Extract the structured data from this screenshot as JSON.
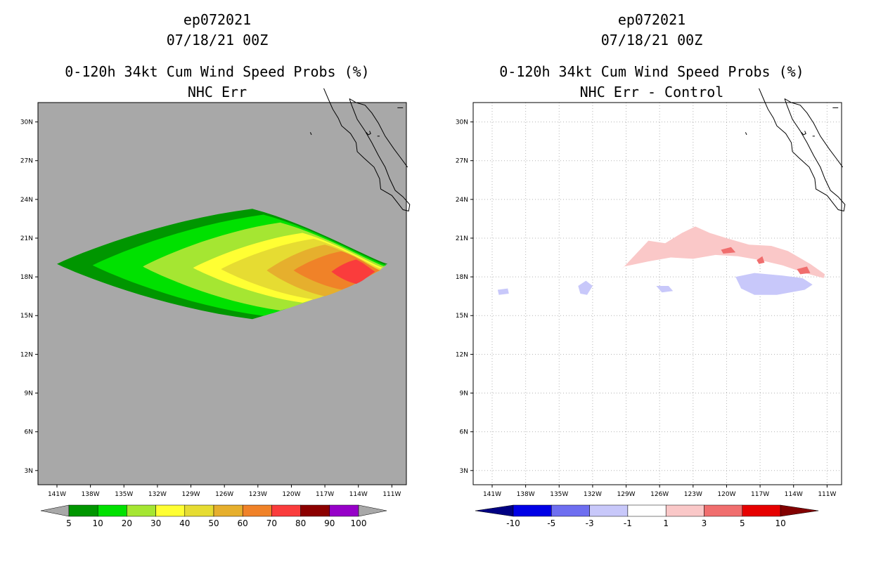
{
  "chart_data": [
    {
      "type": "filled-contour-map",
      "storm_id": "ep072021",
      "valid_time": "07/18/21 00Z",
      "title": "0-120h 34kt Cum Wind Speed Probs (%)",
      "subtitle": "NHC Err",
      "background_color": "#a8a8a8",
      "grid": false,
      "x_ticks": [
        "141W",
        "138W",
        "135W",
        "132W",
        "129W",
        "126W",
        "123W",
        "120W",
        "117W",
        "114W",
        "111W"
      ],
      "y_ticks": [
        "30N",
        "27N",
        "24N",
        "21N",
        "18N",
        "15N",
        "12N",
        "9N",
        "6N",
        "3N"
      ],
      "x_values": [
        -141,
        -138,
        -135,
        -132,
        -129,
        -126,
        -123,
        -120,
        -117,
        -114,
        -111
      ],
      "y_values": [
        30,
        27,
        24,
        21,
        18,
        15,
        12,
        9,
        6,
        3
      ],
      "xlim": [
        -142.7,
        -109.7
      ],
      "ylim": [
        1.9,
        31.5
      ],
      "colorbar": {
        "labels": [
          "5",
          "10",
          "20",
          "30",
          "40",
          "50",
          "60",
          "70",
          "80",
          "90",
          "100"
        ],
        "colors": [
          "#009600",
          "#00e100",
          "#a5e632",
          "#ffff33",
          "#e6dc32",
          "#e6af2d",
          "#f08228",
          "#fa3c3c",
          "#8c0000",
          "#9600c8"
        ],
        "arrow_color": "#a8a8a8"
      },
      "contours": [
        {
          "level": 5,
          "center_lon": -123.5,
          "center_lat": 19.0,
          "west_lon": -141.0,
          "east_lon": -111.4
        },
        {
          "level": 10,
          "center_lon": -122.5,
          "center_lat": 18.9,
          "west_lon": -137.8,
          "east_lon": -111.5
        },
        {
          "level": 20,
          "center_lon": -121.0,
          "center_lat": 18.8,
          "west_lon": -133.3,
          "east_lon": -111.6
        },
        {
          "level": 30,
          "center_lon": -119.0,
          "center_lat": 18.7,
          "west_lon": -128.8,
          "east_lon": -111.8
        },
        {
          "level": 40,
          "center_lon": -118.0,
          "center_lat": 18.6,
          "west_lon": -126.3,
          "east_lon": -111.9
        },
        {
          "level": 50,
          "center_lon": -117.0,
          "center_lat": 18.5,
          "west_lon": -122.2,
          "east_lon": -112.0
        },
        {
          "level": 60,
          "center_lon": -115.5,
          "center_lat": 18.5,
          "west_lon": -119.8,
          "east_lon": -112.1
        },
        {
          "level": 70,
          "center_lon": -114.2,
          "center_lat": 18.4,
          "west_lon": -116.4,
          "east_lon": -112.5
        }
      ]
    },
    {
      "type": "filled-contour-map",
      "storm_id": "ep072021",
      "valid_time": "07/18/21 00Z",
      "title": "0-120h 34kt Cum Wind Speed Probs (%)",
      "subtitle": "NHC Err - Control",
      "background_color": "#ffffff",
      "grid": true,
      "x_ticks": [
        "141W",
        "138W",
        "135W",
        "132W",
        "129W",
        "126W",
        "123W",
        "120W",
        "117W",
        "114W",
        "111W"
      ],
      "y_ticks": [
        "30N",
        "27N",
        "24N",
        "21N",
        "18N",
        "15N",
        "12N",
        "9N",
        "6N",
        "3N"
      ],
      "x_values": [
        -141,
        -138,
        -135,
        -132,
        -129,
        -126,
        -123,
        -120,
        -117,
        -114,
        -111
      ],
      "y_values": [
        30,
        27,
        24,
        21,
        18,
        15,
        12,
        9,
        6,
        3
      ],
      "xlim": [
        -142.7,
        -109.7
      ],
      "ylim": [
        1.9,
        31.5
      ],
      "colorbar": {
        "labels": [
          "-10",
          "-5",
          "-3",
          "-1",
          "1",
          "3",
          "5",
          "10"
        ],
        "colors": [
          "#0000e6",
          "#6e6ef0",
          "#c8c8fa",
          "#ffffff",
          "#fac8c8",
          "#f06e6e",
          "#e60000"
        ],
        "arrow_colors": [
          "#000082",
          "#820000"
        ]
      },
      "positive_areas": [
        {
          "level": 1,
          "lons": [
            -129.5,
            -127,
            -125.5,
            -124,
            -122.8,
            -121.5,
            -120,
            -118,
            -116,
            -114.5,
            -112.5,
            -111.2,
            -111.3,
            -113,
            -115,
            -117,
            -119,
            -121,
            -123,
            -125,
            -127,
            -129.2
          ],
          "lats": [
            18.5,
            20.8,
            20.6,
            21.4,
            21.9,
            21.4,
            21.0,
            20.5,
            20.4,
            20.0,
            19.0,
            18.2,
            17.9,
            18.3,
            18.9,
            19.3,
            19.6,
            19.7,
            19.4,
            19.5,
            19.2,
            18.8
          ]
        },
        {
          "level": 3,
          "lons": [
            -120.5,
            -119.6,
            -119.2,
            -120.3
          ],
          "lats": [
            20.1,
            20.3,
            19.9,
            19.8
          ]
        },
        {
          "level": 3,
          "lons": [
            -117.3,
            -116.8,
            -116.6,
            -117.1
          ],
          "lats": [
            19.3,
            19.6,
            19.1,
            19.0
          ]
        },
        {
          "level": 3,
          "lons": [
            -113.7,
            -112.8,
            -112.5,
            -113.4
          ],
          "lats": [
            18.6,
            18.8,
            18.3,
            18.2
          ]
        }
      ],
      "negative_areas": [
        {
          "level": -1,
          "lons": [
            -119.2,
            -117.5,
            -115,
            -113.2,
            -112.3,
            -113,
            -115.5,
            -117.5,
            -118.7
          ],
          "lats": [
            18.0,
            18.3,
            18.1,
            17.9,
            17.4,
            17.0,
            16.6,
            16.6,
            17.1
          ]
        },
        {
          "level": -1,
          "lons": [
            -133.3,
            -132.6,
            -132.0,
            -132.5,
            -133.1
          ],
          "lats": [
            17.3,
            17.7,
            17.3,
            16.6,
            16.7
          ]
        },
        {
          "level": -1,
          "lons": [
            -126.3,
            -125.2,
            -124.8,
            -125.8
          ],
          "lats": [
            17.3,
            17.3,
            16.9,
            16.8
          ]
        },
        {
          "level": -1,
          "lons": [
            -140.5,
            -139.6,
            -139.5,
            -140.4
          ],
          "lats": [
            17.0,
            17.1,
            16.7,
            16.6
          ]
        }
      ]
    }
  ]
}
